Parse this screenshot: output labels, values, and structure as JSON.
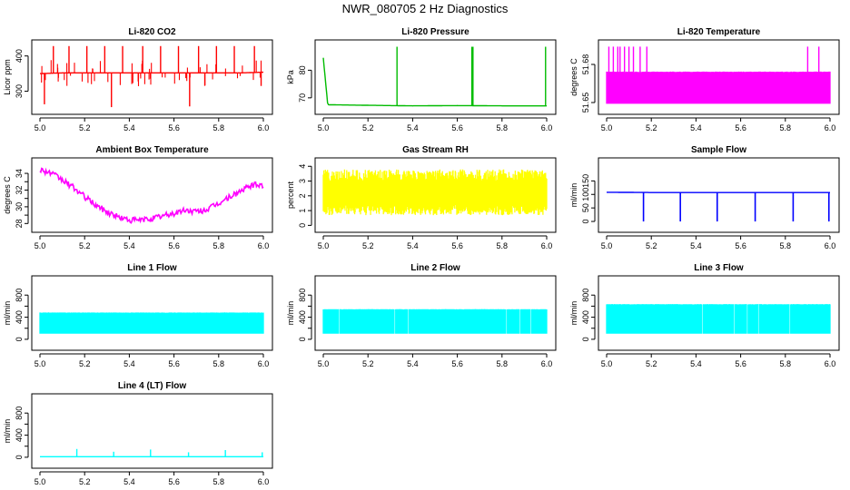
{
  "figure": {
    "title": "NWR_080705  2 Hz Diagnostics"
  },
  "chart_data": [
    {
      "id": "co2",
      "type": "line",
      "title": "Li-820 CO2",
      "xlabel": "",
      "ylabel": "Licor ppm",
      "color": "#ff0000",
      "xlim": [
        5.0,
        6.0
      ],
      "ylim": [
        250,
        430
      ],
      "xticks": [
        5.0,
        5.2,
        5.4,
        5.6,
        5.8,
        6.0
      ],
      "yticks": [
        300,
        400
      ],
      "yticklabels": [
        "300",
        "400"
      ],
      "series": [
        {
          "x": [
            5.0,
            5.1,
            5.2,
            5.3,
            5.4,
            5.5,
            5.6,
            5.7,
            5.8,
            5.9,
            6.0
          ],
          "y": [
            350,
            352,
            352,
            352,
            352,
            352,
            352,
            352,
            352,
            352,
            354
          ]
        }
      ],
      "spikes": [
        {
          "x": 5.02,
          "y": 263
        },
        {
          "x": 5.06,
          "y": 428
        },
        {
          "x": 5.13,
          "y": 428
        },
        {
          "x": 5.21,
          "y": 428
        },
        {
          "x": 5.29,
          "y": 428
        },
        {
          "x": 5.32,
          "y": 255
        },
        {
          "x": 5.37,
          "y": 428
        },
        {
          "x": 5.46,
          "y": 428
        },
        {
          "x": 5.54,
          "y": 428
        },
        {
          "x": 5.62,
          "y": 428
        },
        {
          "x": 5.67,
          "y": 257
        },
        {
          "x": 5.71,
          "y": 428
        },
        {
          "x": 5.79,
          "y": 428
        },
        {
          "x": 5.87,
          "y": 428
        },
        {
          "x": 5.96,
          "y": 428
        },
        {
          "x": 5.99,
          "y": 315
        }
      ]
    },
    {
      "id": "pressure",
      "type": "line",
      "title": "Li-820 Pressure",
      "xlabel": "",
      "ylabel": "kPa",
      "color": "#00bb00",
      "xlim": [
        5.0,
        6.0
      ],
      "ylim": [
        66,
        89
      ],
      "xticks": [
        5.0,
        5.2,
        5.4,
        5.6,
        5.8,
        6.0
      ],
      "yticks": [
        70,
        80
      ],
      "yticklabels": [
        "70",
        "80"
      ],
      "series": [
        {
          "x": [
            5.0,
            5.02,
            5.2,
            5.4,
            5.6,
            5.8,
            6.0
          ],
          "y": [
            84.5,
            67.5,
            67.3,
            67.1,
            67.2,
            67.1,
            67.1
          ]
        }
      ],
      "spikes": [
        {
          "x": 5.33,
          "y": 88.5
        },
        {
          "x": 5.665,
          "y": 88.5
        },
        {
          "x": 5.67,
          "y": 88.5
        },
        {
          "x": 5.995,
          "y": 88.5
        }
      ]
    },
    {
      "id": "temp820",
      "type": "area",
      "title": "Li-820 Temperature",
      "xlabel": "",
      "ylabel": "degrees C",
      "color": "#ff00ff",
      "xlim": [
        5.0,
        6.0
      ],
      "ylim": [
        51.645,
        51.695
      ],
      "xticks": [
        5.0,
        5.2,
        5.4,
        5.6,
        5.8,
        6.0
      ],
      "yticks": [
        51.65,
        51.68
      ],
      "yticklabels": [
        "51.65",
        "51.68"
      ],
      "band": {
        "ylow": 51.649,
        "yhigh": 51.674
      },
      "spikes": [
        {
          "x": 5.01,
          "y": 51.694
        },
        {
          "x": 5.03,
          "y": 51.694
        },
        {
          "x": 5.05,
          "y": 51.694
        },
        {
          "x": 5.06,
          "y": 51.694
        },
        {
          "x": 5.08,
          "y": 51.694
        },
        {
          "x": 5.1,
          "y": 51.694
        },
        {
          "x": 5.12,
          "y": 51.694
        },
        {
          "x": 5.15,
          "y": 51.694
        },
        {
          "x": 5.18,
          "y": 51.694
        },
        {
          "x": 5.9,
          "y": 51.694
        },
        {
          "x": 5.95,
          "y": 51.694
        }
      ]
    },
    {
      "id": "ambient",
      "type": "line",
      "title": "Ambient Box Temperature",
      "xlabel": "",
      "ylabel": "degrees C",
      "color": "#ff00ff",
      "xlim": [
        5.0,
        6.0
      ],
      "ylim": [
        27.6,
        35.2
      ],
      "xticks": [
        5.0,
        5.2,
        5.4,
        5.6,
        5.8,
        6.0
      ],
      "yticks": [
        28,
        29,
        30,
        31,
        32,
        33,
        34
      ],
      "yticklabels": [
        "28",
        "",
        "30",
        "",
        "32",
        "",
        "34"
      ],
      "series": [
        {
          "x": [
            5.0,
            5.05,
            5.1,
            5.15,
            5.2,
            5.25,
            5.3,
            5.35,
            5.4,
            5.45,
            5.5,
            5.55,
            5.6,
            5.65,
            5.7,
            5.75,
            5.8,
            5.85,
            5.9,
            5.95,
            6.0
          ],
          "y": [
            34.5,
            34.0,
            33.2,
            32.3,
            31.2,
            30.2,
            29.4,
            28.8,
            28.4,
            28.4,
            28.6,
            28.9,
            29.2,
            29.6,
            29.4,
            29.7,
            30.4,
            31.2,
            31.9,
            32.6,
            32.6
          ]
        }
      ],
      "noise": 0.35
    },
    {
      "id": "rh",
      "type": "area",
      "title": "Gas Stream RH",
      "xlabel": "",
      "ylabel": "percent",
      "color": "#ffff00",
      "xlim": [
        5.0,
        6.0
      ],
      "ylim": [
        -0.1,
        4.2
      ],
      "xticks": [
        5.0,
        5.2,
        5.4,
        5.6,
        5.8,
        6.0
      ],
      "yticks": [
        0,
        1,
        2,
        3,
        4
      ],
      "yticklabels": [
        "0",
        "1",
        "2",
        "3",
        "4"
      ],
      "band": {
        "ylow": 0.9,
        "yhigh": 3.3
      },
      "noise": 0.7
    },
    {
      "id": "sample",
      "type": "line",
      "title": "Sample Flow",
      "xlabel": "",
      "ylabel": "ml/min",
      "color": "#0000ff",
      "xlim": [
        5.0,
        6.0
      ],
      "ylim": [
        -20,
        215
      ],
      "xticks": [
        5.0,
        5.2,
        5.4,
        5.6,
        5.8,
        6.0
      ],
      "yticks": [
        0,
        50,
        100,
        150
      ],
      "yticklabels": [
        "0",
        "50",
        "100",
        "150"
      ],
      "series": [
        {
          "x": [
            5.0,
            5.2,
            5.4,
            5.6,
            5.8,
            6.0
          ],
          "y": [
            108,
            107,
            107,
            107,
            107,
            107
          ]
        }
      ],
      "drops": [
        5.165,
        5.33,
        5.495,
        5.665,
        5.835,
        5.995
      ],
      "drop_min": 0
    },
    {
      "id": "line1",
      "type": "area",
      "title": "Line 1 Flow",
      "xlabel": "",
      "ylabel": "ml/min",
      "color": "#00ffff",
      "xlim": [
        5.0,
        6.0
      ],
      "ylim": [
        -100,
        1050
      ],
      "xticks": [
        5.0,
        5.2,
        5.4,
        5.6,
        5.8,
        6.0
      ],
      "yticks": [
        0,
        200,
        400,
        600,
        800
      ],
      "yticklabels": [
        "0",
        "",
        "400",
        "",
        "800"
      ],
      "band": {
        "ylow": 100,
        "yhigh": 480
      },
      "gaps": [
        5.165,
        5.33,
        5.495,
        5.665,
        5.83,
        5.995
      ]
    },
    {
      "id": "line2",
      "type": "area",
      "title": "Line 2 Flow",
      "xlabel": "",
      "ylabel": "ml/min",
      "color": "#00ffff",
      "xlim": [
        5.0,
        6.0
      ],
      "ylim": [
        -100,
        1050
      ],
      "xticks": [
        5.0,
        5.2,
        5.4,
        5.6,
        5.8,
        6.0
      ],
      "yticks": [
        0,
        200,
        400,
        600,
        800
      ],
      "yticklabels": [
        "0",
        "",
        "400",
        "",
        "800"
      ],
      "band": {
        "ylow": 100,
        "yhigh": 540
      },
      "gaps": [
        5.07,
        5.1,
        5.17,
        5.24,
        5.32,
        5.38,
        5.42,
        5.5,
        5.58,
        5.62,
        5.7,
        5.74,
        5.77,
        5.82,
        5.88,
        5.93
      ]
    },
    {
      "id": "line3",
      "type": "area",
      "title": "Line 3 Flow",
      "xlabel": "",
      "ylabel": "ml/min",
      "color": "#00ffff",
      "xlim": [
        5.0,
        6.0
      ],
      "ylim": [
        -100,
        1050
      ],
      "xticks": [
        5.0,
        5.2,
        5.4,
        5.6,
        5.8,
        6.0
      ],
      "yticks": [
        0,
        200,
        400,
        600,
        800
      ],
      "yticklabels": [
        "0",
        "",
        "400",
        "",
        "800"
      ],
      "band": {
        "ylow": 100,
        "yhigh": 630
      },
      "gaps": [
        5.03,
        5.11,
        5.17,
        5.21,
        5.28,
        5.33,
        5.43,
        5.5,
        5.57,
        5.63,
        5.68,
        5.72,
        5.79,
        5.82,
        5.85,
        5.92,
        5.99
      ]
    },
    {
      "id": "line4",
      "type": "line",
      "title": "Line 4 (LT) Flow",
      "xlabel": "",
      "ylabel": "ml/min",
      "color": "#00ffff",
      "xlim": [
        5.0,
        6.0
      ],
      "ylim": [
        -100,
        1050
      ],
      "xticks": [
        5.0,
        5.2,
        5.4,
        5.6,
        5.8,
        6.0
      ],
      "yticks": [
        0,
        200,
        400,
        600,
        800
      ],
      "yticklabels": [
        "0",
        "",
        "400",
        "",
        "800"
      ],
      "series": [
        {
          "x": [
            5.0,
            5.5,
            6.0
          ],
          "y": [
            10,
            10,
            10
          ]
        }
      ],
      "spikes": [
        {
          "x": 5.165,
          "y": 150
        },
        {
          "x": 5.33,
          "y": 100
        },
        {
          "x": 5.495,
          "y": 140
        },
        {
          "x": 5.665,
          "y": 90
        },
        {
          "x": 5.83,
          "y": 130
        },
        {
          "x": 5.995,
          "y": 90
        }
      ]
    }
  ]
}
